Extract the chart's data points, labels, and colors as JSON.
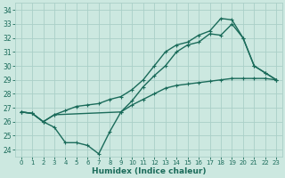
{
  "xlabel": "Humidex (Indice chaleur)",
  "background_color": "#cce8e0",
  "grid_color": "#aacfc8",
  "line_color": "#1a6b5a",
  "x_line1": [
    0,
    1,
    2,
    3,
    4,
    5,
    6,
    7,
    8,
    9,
    10,
    11,
    12,
    13,
    14,
    15,
    16,
    17,
    18,
    19,
    20,
    21,
    22,
    23
  ],
  "y_line1": [
    26.7,
    26.6,
    26.0,
    26.5,
    26.8,
    27.1,
    27.2,
    27.3,
    27.6,
    27.8,
    28.3,
    29.0,
    30.0,
    31.0,
    31.5,
    31.7,
    32.2,
    32.5,
    33.4,
    33.3,
    32.0,
    30.0,
    29.5,
    29.0
  ],
  "x_line2": [
    0,
    1,
    2,
    3,
    4,
    5,
    6,
    7,
    8,
    9,
    10,
    11,
    12,
    13,
    14,
    15,
    16,
    17,
    18,
    19,
    20,
    21,
    22,
    23
  ],
  "y_line2": [
    26.7,
    26.6,
    26.0,
    25.6,
    24.5,
    24.5,
    24.3,
    23.7,
    25.3,
    26.7,
    27.5,
    28.5,
    29.3,
    30.0,
    31.0,
    31.5,
    31.7,
    32.3,
    32.2,
    33.0,
    32.0,
    30.0,
    29.5,
    29.0
  ],
  "x_line3": [
    0,
    1,
    2,
    3,
    9,
    10,
    11,
    12,
    13,
    14,
    15,
    16,
    17,
    18,
    19,
    20,
    21,
    22,
    23
  ],
  "y_line3": [
    26.7,
    26.6,
    26.0,
    26.5,
    26.7,
    27.2,
    27.6,
    28.0,
    28.4,
    28.6,
    28.7,
    28.8,
    28.9,
    29.0,
    29.1,
    29.1,
    29.1,
    29.1,
    29.0
  ],
  "xlim": [
    -0.5,
    23.5
  ],
  "ylim": [
    23.5,
    34.5
  ],
  "yticks": [
    24,
    25,
    26,
    27,
    28,
    29,
    30,
    31,
    32,
    33,
    34
  ],
  "xticks": [
    0,
    1,
    2,
    3,
    4,
    5,
    6,
    7,
    8,
    9,
    10,
    11,
    12,
    13,
    14,
    15,
    16,
    17,
    18,
    19,
    20,
    21,
    22,
    23
  ],
  "markersize": 3,
  "linewidth": 1.0
}
